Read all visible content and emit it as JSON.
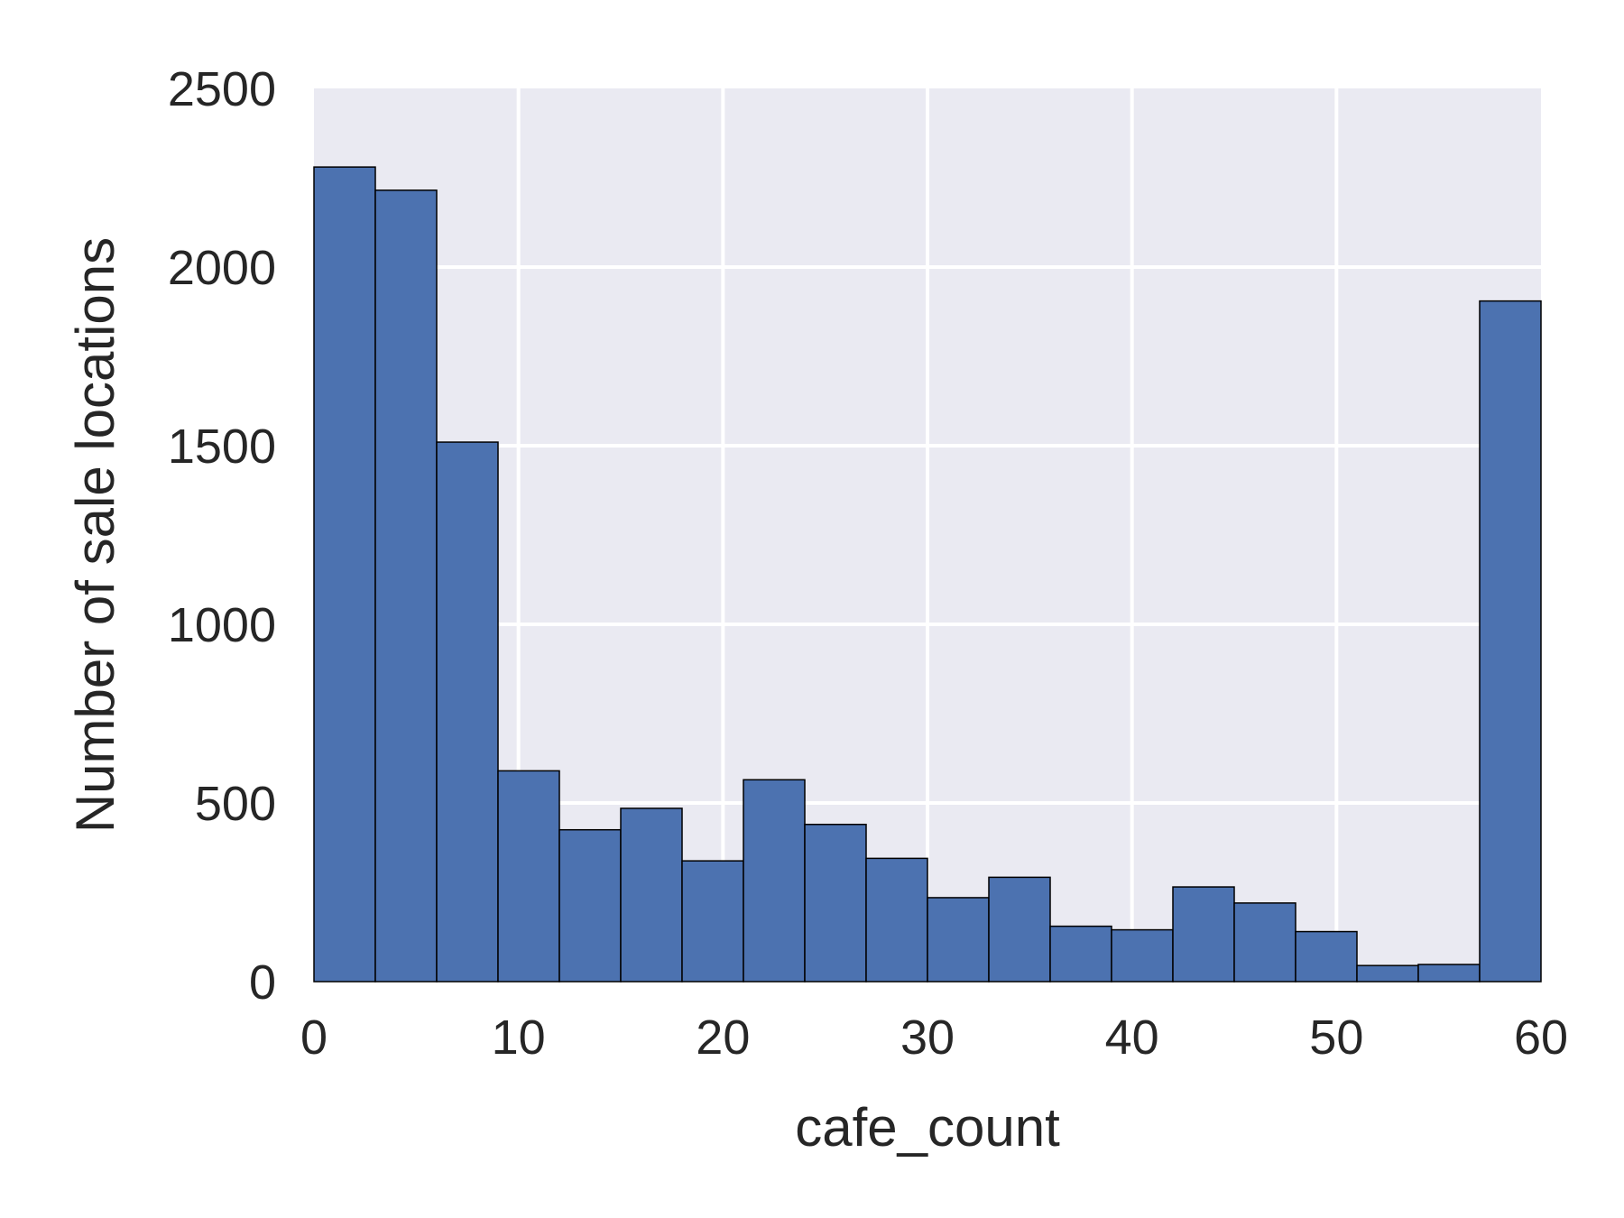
{
  "chart_data": {
    "type": "bar",
    "histogram": true,
    "title": "",
    "xlabel": "cafe_count",
    "ylabel": "Number of sale locations",
    "xlim": [
      0,
      60
    ],
    "ylim": [
      0,
      2500
    ],
    "xticks": [
      0,
      10,
      20,
      30,
      40,
      50,
      60
    ],
    "yticks": [
      0,
      500,
      1000,
      1500,
      2000,
      2500
    ],
    "grid": true,
    "bins": [
      {
        "x0": 0,
        "x1": 3,
        "value": 2280
      },
      {
        "x0": 3,
        "x1": 6,
        "value": 2215
      },
      {
        "x0": 6,
        "x1": 9,
        "value": 1510
      },
      {
        "x0": 9,
        "x1": 12,
        "value": 590
      },
      {
        "x0": 12,
        "x1": 15,
        "value": 425
      },
      {
        "x0": 15,
        "x1": 18,
        "value": 485
      },
      {
        "x0": 18,
        "x1": 21,
        "value": 338
      },
      {
        "x0": 21,
        "x1": 24,
        "value": 565
      },
      {
        "x0": 24,
        "x1": 27,
        "value": 440
      },
      {
        "x0": 27,
        "x1": 30,
        "value": 345
      },
      {
        "x0": 30,
        "x1": 33,
        "value": 235
      },
      {
        "x0": 33,
        "x1": 36,
        "value": 292
      },
      {
        "x0": 36,
        "x1": 39,
        "value": 155
      },
      {
        "x0": 39,
        "x1": 42,
        "value": 145
      },
      {
        "x0": 42,
        "x1": 45,
        "value": 265
      },
      {
        "x0": 45,
        "x1": 48,
        "value": 220
      },
      {
        "x0": 48,
        "x1": 51,
        "value": 140
      },
      {
        "x0": 51,
        "x1": 54,
        "value": 45
      },
      {
        "x0": 54,
        "x1": 57,
        "value": 48
      },
      {
        "x0": 57,
        "x1": 60,
        "value": 1905
      }
    ],
    "colors": {
      "bar": "#4c72b0",
      "bar_edge": "#000000",
      "plot_bg": "#eaeaf2",
      "grid": "#ffffff",
      "text": "#262626"
    }
  }
}
